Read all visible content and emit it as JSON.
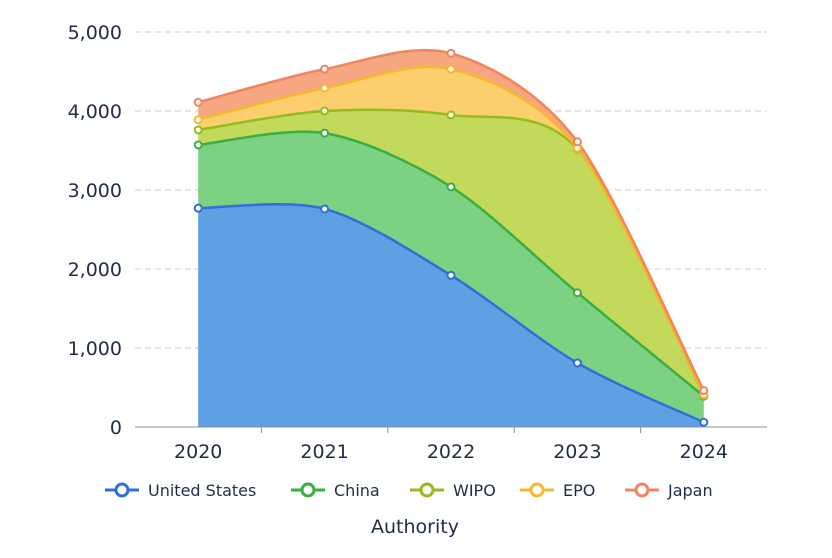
{
  "chart_data": {
    "type": "area",
    "stacked": true,
    "smooth": true,
    "categories": [
      "2020",
      "2021",
      "2022",
      "2023",
      "2024"
    ],
    "series": [
      {
        "name": "United States",
        "values": [
          2770,
          2760,
          1920,
          810,
          60
        ],
        "color": "#2f6fd8",
        "fill": "#5fa0e3"
      },
      {
        "name": "China",
        "values": [
          800,
          960,
          1120,
          890,
          330
        ],
        "color": "#3aae44",
        "fill": "#7dd182"
      },
      {
        "name": "WIPO",
        "values": [
          190,
          280,
          910,
          1820,
          10
        ],
        "color": "#93bd1c",
        "fill": "#c3d95c"
      },
      {
        "name": "EPO",
        "values": [
          130,
          290,
          580,
          10,
          10
        ],
        "color": "#f5b82e",
        "fill": "#fbcf6e"
      },
      {
        "name": "Japan",
        "values": [
          220,
          240,
          200,
          80,
          50
        ],
        "color": "#f2845c",
        "fill": "#f7a682"
      }
    ],
    "y_ticks": [
      "0",
      "1,000",
      "2,000",
      "3,000",
      "4,000",
      "5,000"
    ],
    "ylim": [
      0,
      5000
    ],
    "xlabel": "Authority",
    "ylabel": "",
    "grid": "horizontal dashed",
    "legend_position": "bottom"
  }
}
